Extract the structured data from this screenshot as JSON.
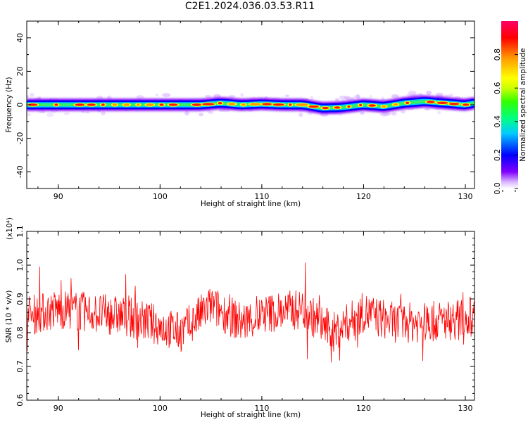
{
  "title": "C2E1.2024.036.03.53.R11",
  "chart_data": [
    {
      "type": "heatmap",
      "xlabel": "Height of straight line (km)",
      "ylabel": "Frequency (Hz)",
      "xlim": [
        86.9,
        130.9
      ],
      "ylim": [
        -50,
        50
      ],
      "xticks": [
        90,
        100,
        110,
        120,
        130
      ],
      "yticks": [
        40,
        20,
        0,
        -20,
        -40
      ],
      "colorbar": {
        "label": "Normalized spectral amplitude",
        "range": [
          0.0,
          1.0
        ],
        "ticks": [
          0.0,
          0.2,
          0.4,
          0.6,
          0.8
        ],
        "colors": [
          "#ffffff",
          "#d9b3ff",
          "#8000ff",
          "#0000ff",
          "#00ccff",
          "#00ff80",
          "#33ff00",
          "#ccff00",
          "#ffff00",
          "#ff9900",
          "#ff0000",
          "#ff0066"
        ]
      },
      "ridge_center": {
        "height_km": [
          87,
          90,
          95,
          100,
          102,
          104,
          106,
          108,
          110,
          112,
          114,
          116,
          118,
          120,
          122,
          124,
          126,
          128,
          130,
          130.9
        ],
        "frequency_hz": [
          0,
          0,
          0,
          0,
          0,
          0,
          1,
          0,
          0.5,
          0,
          0,
          -2,
          -1.5,
          0,
          -1,
          1,
          2,
          1,
          0,
          1
        ]
      }
    },
    {
      "type": "line",
      "xlabel": "Height of straight line (km)",
      "ylabel": "SNR (10 * v/v)",
      "y_multiplier": "(x10⁴)",
      "xlim": [
        86.9,
        130.9
      ],
      "ylim": [
        0.6,
        1.1
      ],
      "xticks": [
        90,
        100,
        110,
        120,
        130
      ],
      "yticks": [
        0.6,
        0.7,
        0.8,
        0.9,
        1.0,
        1.1
      ],
      "series_color": "#ff0000",
      "baseline": {
        "height_km": [
          87,
          90,
          93,
          96,
          99,
          102,
          105,
          108,
          111,
          114,
          117,
          120,
          123,
          126,
          129,
          130.9
        ],
        "snr": [
          0.85,
          0.87,
          0.86,
          0.85,
          0.83,
          0.8,
          0.88,
          0.83,
          0.86,
          0.87,
          0.8,
          0.86,
          0.83,
          0.83,
          0.84,
          0.85
        ]
      },
      "spread": 0.06
    }
  ]
}
